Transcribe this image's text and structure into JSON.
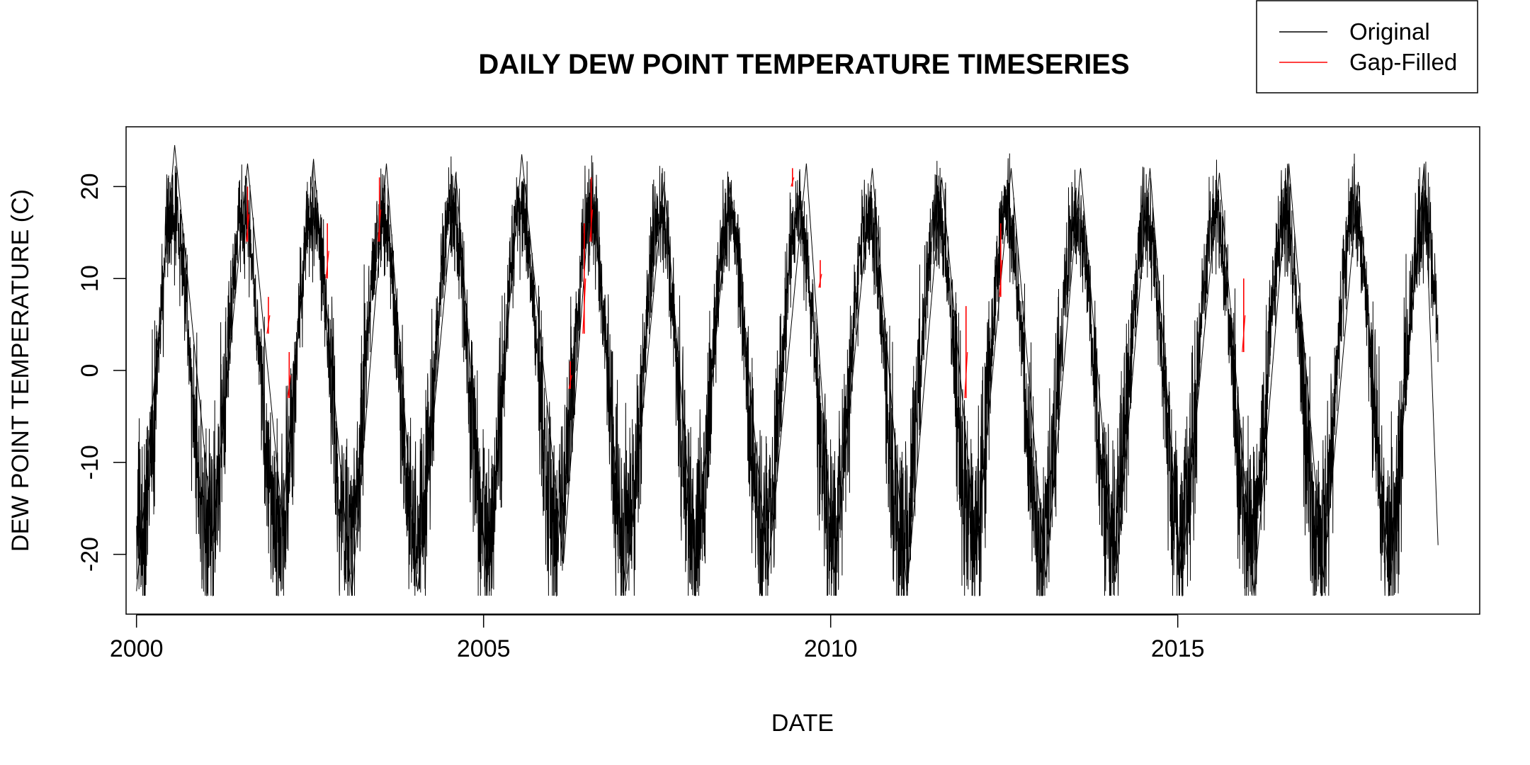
{
  "chart_data": {
    "type": "line",
    "title": "DAILY DEW POINT TEMPERATURE TIMESERIES",
    "xlabel": "DATE",
    "ylabel": "DEW POINT TEMPERATURE (C)",
    "xlim": [
      1999.85,
      2019.35
    ],
    "ylim": [
      -26.5,
      26.5
    ],
    "x_ticks": [
      2000,
      2005,
      2010,
      2015
    ],
    "x_tick_labels": [
      "2000",
      "2005",
      "2010",
      "2015"
    ],
    "y_ticks": [
      -20,
      -10,
      0,
      10,
      20
    ],
    "y_tick_labels": [
      "-20",
      "-10",
      "0",
      "10",
      "20"
    ],
    "grid": false,
    "legend_position": "top-right",
    "seasonal_cycle": {
      "start_year": 2000,
      "end_year": 2018.75,
      "peak_month": "July",
      "typical_summer_max_c": 22,
      "typical_winter_min_c": -23,
      "observed_max_c": 24.5,
      "observed_min_c": -24.5
    },
    "series": [
      {
        "name": "Original",
        "color": "#000000",
        "description_points": [
          {
            "x": 2000.0,
            "y": -24.0
          },
          {
            "x": 2000.55,
            "y": 24.5
          },
          {
            "x": 2001.1,
            "y": -18.0
          },
          {
            "x": 2001.6,
            "y": 22.5
          },
          {
            "x": 2002.1,
            "y": -16.0
          },
          {
            "x": 2002.55,
            "y": 23.0
          },
          {
            "x": 2003.1,
            "y": -24.5
          },
          {
            "x": 2003.6,
            "y": 22.5
          },
          {
            "x": 2004.05,
            "y": -24.0
          },
          {
            "x": 2004.6,
            "y": 21.5
          },
          {
            "x": 2005.05,
            "y": -23.0
          },
          {
            "x": 2005.55,
            "y": 23.5
          },
          {
            "x": 2006.15,
            "y": -21.0
          },
          {
            "x": 2006.55,
            "y": 21.0
          },
          {
            "x": 2007.05,
            "y": -24.0
          },
          {
            "x": 2007.6,
            "y": 20.5
          },
          {
            "x": 2008.05,
            "y": -21.5
          },
          {
            "x": 2008.55,
            "y": 20.5
          },
          {
            "x": 2009.1,
            "y": -22.0
          },
          {
            "x": 2009.65,
            "y": 22.5
          },
          {
            "x": 2010.05,
            "y": -22.0
          },
          {
            "x": 2010.6,
            "y": 22.0
          },
          {
            "x": 2011.1,
            "y": -24.0
          },
          {
            "x": 2011.6,
            "y": 21.0
          },
          {
            "x": 2012.1,
            "y": -19.5
          },
          {
            "x": 2012.6,
            "y": 22.0
          },
          {
            "x": 2013.1,
            "y": -22.5
          },
          {
            "x": 2013.6,
            "y": 22.0
          },
          {
            "x": 2014.1,
            "y": -23.0
          },
          {
            "x": 2014.6,
            "y": 22.0
          },
          {
            "x": 2015.05,
            "y": -22.5
          },
          {
            "x": 2015.6,
            "y": 21.5
          },
          {
            "x": 2016.1,
            "y": -24.5
          },
          {
            "x": 2016.6,
            "y": 22.5
          },
          {
            "x": 2017.1,
            "y": -22.5
          },
          {
            "x": 2017.6,
            "y": 20.5
          },
          {
            "x": 2018.05,
            "y": -24.0
          },
          {
            "x": 2018.55,
            "y": 22.5
          },
          {
            "x": 2018.75,
            "y": -19.0
          }
        ]
      },
      {
        "name": "Gap-Filled",
        "color": "#ff0000",
        "segments": [
          {
            "x": 2001.6,
            "y_range": [
              14,
              20
            ]
          },
          {
            "x": 2001.9,
            "y_range": [
              4,
              8
            ]
          },
          {
            "x": 2002.2,
            "y_range": [
              -3,
              2
            ]
          },
          {
            "x": 2002.75,
            "y_range": [
              10,
              16
            ]
          },
          {
            "x": 2003.5,
            "y_range": [
              14,
              21
            ]
          },
          {
            "x": 2006.25,
            "y_range": [
              -2,
              1
            ]
          },
          {
            "x": 2006.45,
            "y_range": [
              4,
              16
            ]
          },
          {
            "x": 2006.55,
            "y_range": [
              14,
              21
            ]
          },
          {
            "x": 2009.45,
            "y_range": [
              20,
              22
            ]
          },
          {
            "x": 2009.85,
            "y_range": [
              9,
              12
            ]
          },
          {
            "x": 2011.95,
            "y_range": [
              -3,
              7
            ]
          },
          {
            "x": 2012.45,
            "y_range": [
              8,
              16
            ]
          },
          {
            "x": 2015.95,
            "y_range": [
              2,
              10
            ]
          }
        ]
      }
    ]
  }
}
